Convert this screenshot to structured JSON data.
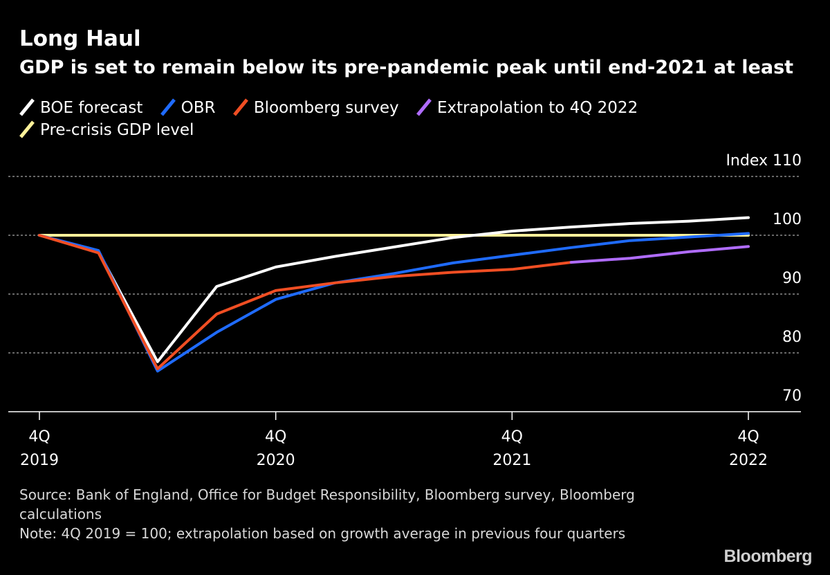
{
  "header": {
    "title": "Long Haul",
    "subtitle": "GDP is set to remain below its pre-pandemic peak until end-2021 at least"
  },
  "legend": [
    {
      "label": "BOE forecast",
      "color": "#ffffff"
    },
    {
      "label": "OBR",
      "color": "#1f6bff"
    },
    {
      "label": "Bloomberg survey",
      "color": "#f04e23"
    },
    {
      "label": "Extrapolation to 4Q 2022",
      "color": "#b06cff"
    },
    {
      "label": "Pre-crisis GDP level",
      "color": "#fff29a"
    }
  ],
  "footer": {
    "source": "Source: Bank of England, Office for Budget Responsibility, Bloomberg survey, Bloomberg calculations",
    "note": "Note: 4Q 2019 = 100; extrapolation based on growth average in previous four quarters"
  },
  "brand": "Bloomberg",
  "chart_data": {
    "type": "line",
    "y_unit_label": "Index",
    "ylim": [
      70,
      110
    ],
    "yticks": [
      70,
      80,
      90,
      100,
      110
    ],
    "xlim": [
      "2019Q4",
      "2022Q4"
    ],
    "x_categories": [
      "2019Q4",
      "2020Q1",
      "2020Q2",
      "2020Q3",
      "2020Q4",
      "2021Q1",
      "2021Q2",
      "2021Q3",
      "2021Q4",
      "2022Q1",
      "2022Q2",
      "2022Q3",
      "2022Q4"
    ],
    "xticks": [
      {
        "q": "2019Q4",
        "line1": "4Q",
        "line2": "2019"
      },
      {
        "q": "2020Q4",
        "line1": "4Q",
        "line2": "2020"
      },
      {
        "q": "2021Q4",
        "line1": "4Q",
        "line2": "2021"
      },
      {
        "q": "2022Q4",
        "line1": "4Q",
        "line2": "2022"
      }
    ],
    "grid": true,
    "series": [
      {
        "name": "Pre-crisis GDP level",
        "color": "#fff29a",
        "x": [
          "2019Q4",
          "2022Q4"
        ],
        "y": [
          100,
          100
        ]
      },
      {
        "name": "BOE forecast",
        "color": "#ffffff",
        "x": [
          "2019Q4",
          "2020Q1",
          "2020Q2",
          "2020Q3",
          "2020Q4",
          "2021Q1",
          "2021Q2",
          "2021Q3",
          "2021Q4",
          "2022Q1",
          "2022Q2",
          "2022Q3",
          "2022Q4"
        ],
        "y": [
          100,
          97.2,
          78.5,
          91.3,
          94.6,
          96.4,
          98.0,
          99.6,
          100.7,
          101.4,
          102.0,
          102.4,
          103.0
        ]
      },
      {
        "name": "OBR",
        "color": "#1f6bff",
        "x": [
          "2019Q4",
          "2020Q1",
          "2020Q2",
          "2020Q3",
          "2020Q4",
          "2021Q1",
          "2021Q2",
          "2021Q3",
          "2021Q4",
          "2022Q1",
          "2022Q2",
          "2022Q3",
          "2022Q4"
        ],
        "y": [
          100,
          97.4,
          76.9,
          83.5,
          89.1,
          91.9,
          93.5,
          95.3,
          96.6,
          97.9,
          99.1,
          99.7,
          100.3
        ]
      },
      {
        "name": "Bloomberg survey",
        "color": "#f04e23",
        "x": [
          "2019Q4",
          "2020Q1",
          "2020Q2",
          "2020Q3",
          "2020Q4",
          "2021Q1",
          "2021Q2",
          "2021Q3",
          "2021Q4",
          "2022Q1"
        ],
        "y": [
          100,
          97.0,
          77.3,
          86.6,
          90.6,
          91.9,
          93.0,
          93.7,
          94.2,
          95.4
        ]
      },
      {
        "name": "Extrapolation to 4Q 2022",
        "color": "#b06cff",
        "x": [
          "2022Q1",
          "2022Q2",
          "2022Q3",
          "2022Q4"
        ],
        "y": [
          95.4,
          96.1,
          97.2,
          98.1
        ]
      }
    ]
  }
}
